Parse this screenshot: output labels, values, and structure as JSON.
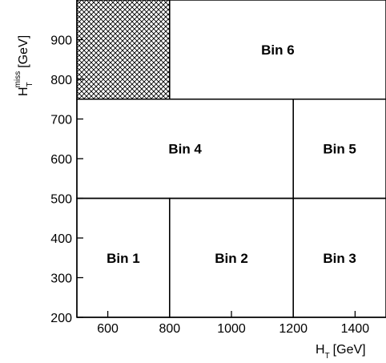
{
  "chart_data": {
    "type": "diagram",
    "xlim": [
      500,
      1500
    ],
    "ylim": [
      200,
      1000
    ],
    "x_ticks": [
      600,
      800,
      1000,
      1200,
      1400
    ],
    "y_ticks": [
      200,
      300,
      400,
      500,
      600,
      700,
      800,
      900
    ],
    "xlabel": {
      "main": "H",
      "sub": "T",
      "sup": "",
      "unit": "[GeV]"
    },
    "ylabel": {
      "main": "H",
      "sub": "T",
      "sup": "miss",
      "unit": "[GeV]"
    },
    "excluded_region": {
      "x": [
        500,
        800
      ],
      "y": [
        750,
        1000
      ],
      "fill": "crosshatch"
    },
    "bins": [
      {
        "label": "Bin 1",
        "ht": [
          500,
          800
        ],
        "mht": [
          200,
          500
        ]
      },
      {
        "label": "Bin 2",
        "ht": [
          800,
          1200
        ],
        "mht": [
          200,
          500
        ]
      },
      {
        "label": "Bin 3",
        "ht": [
          1200,
          1500
        ],
        "mht": [
          200,
          500
        ]
      },
      {
        "label": "Bin 4",
        "ht": [
          500,
          1200
        ],
        "mht": [
          500,
          750
        ]
      },
      {
        "label": "Bin 5",
        "ht": [
          1200,
          1500
        ],
        "mht": [
          500,
          750
        ]
      },
      {
        "label": "Bin 6",
        "ht": [
          800,
          1500
        ],
        "mht": [
          750,
          1000
        ]
      }
    ],
    "grid": false
  }
}
